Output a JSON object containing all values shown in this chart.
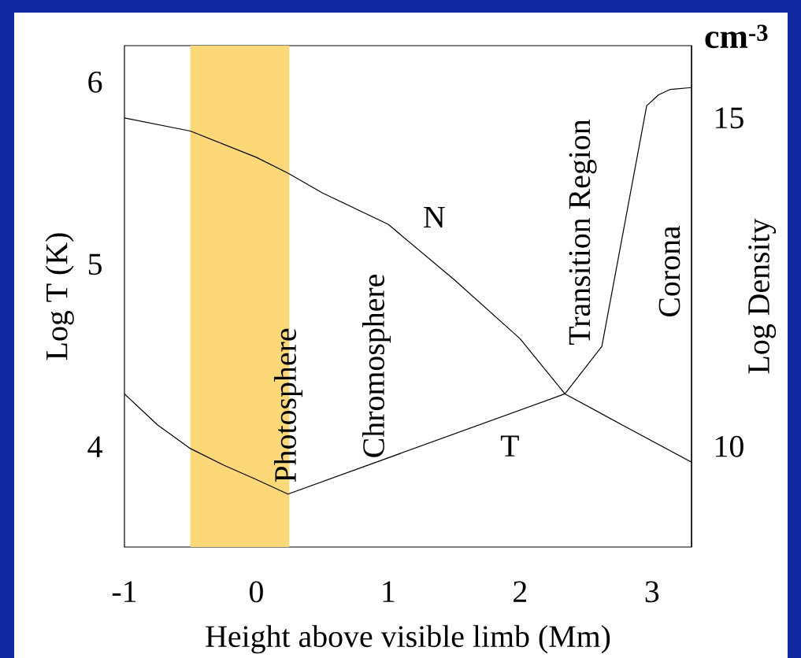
{
  "chart_data": {
    "type": "line",
    "xlabel": "Height above visible limb (Mm)",
    "ylabel": "Log T (K)",
    "y2label": "Log Density",
    "xlim": [
      -1,
      3.3
    ],
    "xticks": [
      -1,
      0,
      1,
      2,
      3
    ],
    "ylim": [
      3.45,
      6.2
    ],
    "yticks": [
      4,
      5,
      6
    ],
    "y2lim": [
      8.47,
      16.1
    ],
    "y2ticks": [
      10,
      15
    ],
    "series": [
      {
        "name": "N",
        "color": "#000000",
        "axis": "y2",
        "x": [
          -1,
          -0.5,
          0,
          0.24,
          0.5,
          1,
          1.5,
          2,
          2.34,
          2.8,
          3.3
        ],
        "values": [
          15.0,
          14.8,
          14.4,
          14.16,
          13.86,
          13.38,
          12.54,
          11.64,
          10.8,
          10.3,
          9.76
        ]
      },
      {
        "name": "T",
        "color": "#000000",
        "axis": "y",
        "x": [
          -1,
          -0.75,
          -0.5,
          -0.25,
          0,
          0.24,
          2.34,
          2.62,
          2.96,
          3.05,
          3.14,
          3.3
        ],
        "values": [
          4.29,
          4.12,
          3.99,
          3.9,
          3.82,
          3.74,
          4.29,
          4.55,
          5.87,
          5.93,
          5.96,
          5.97
        ]
      }
    ],
    "bands": [
      {
        "axis": "x",
        "from": -0.5,
        "to": 0.25,
        "color": "#fcd878"
      }
    ],
    "annotations": [
      "Photosphere",
      "Chromosphere",
      "Transition Region",
      "Corona",
      "cm$^{-3}$"
    ],
    "line_style": "solid",
    "marker": "none",
    "grid": false
  }
}
